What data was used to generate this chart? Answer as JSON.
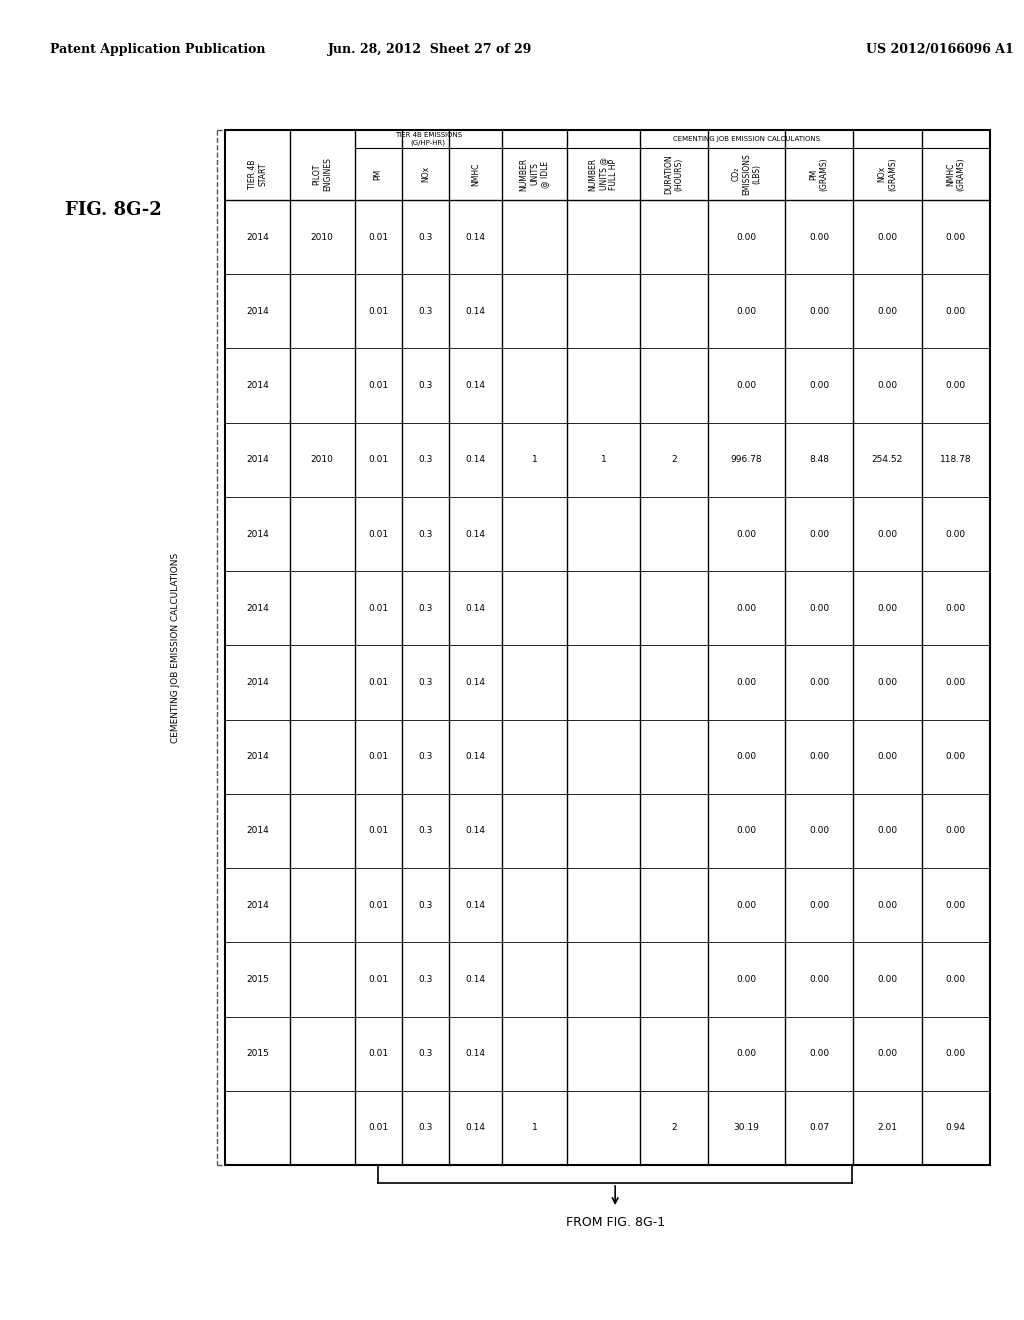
{
  "fig_label": "FIG. 8G-2",
  "patent_header_left": "Patent Application Publication",
  "patent_header_mid": "Jun. 28, 2012  Sheet 27 of 29",
  "patent_header_right": "US 2012/0166096 A1",
  "from_label": "FROM FIG. 8G-1",
  "background": "#ffffff",
  "text_color": "#000000",
  "col_headers": [
    "TIER 4B\nSTART",
    "PILOT\nENGINES",
    "PM",
    "NOx",
    "NMHC",
    "NUMBER\nUNITS\n@ IDLE",
    "NUMBER\nUNITS @\nFULL HP",
    "DURATION\n(HOURS)",
    "CO₂\nEMISSIONS\n(LBS)",
    "PM\n(GRAMS)",
    "NOx\n(GRAMS)",
    "NMHC\n(GRAMS)"
  ],
  "group_label_tier4b": "TIER 4B EMISSIONS\n(G/HP-HR)",
  "group_label_cem": "CEMENTING JOB EMISSION CALCULATIONS",
  "data_rows": [
    [
      "2014",
      "2010",
      "0.01",
      "0.3",
      "0.14",
      "",
      "",
      "",
      "0.00",
      "0.00",
      "0.00",
      "0.00"
    ],
    [
      "2014",
      "",
      "0.01",
      "0.3",
      "0.14",
      "",
      "",
      "",
      "0.00",
      "0.00",
      "0.00",
      "0.00"
    ],
    [
      "2014",
      "",
      "0.01",
      "0.3",
      "0.14",
      "",
      "",
      "",
      "0.00",
      "0.00",
      "0.00",
      "0.00"
    ],
    [
      "2014",
      "2010",
      "0.01",
      "0.3",
      "0.14",
      "1",
      "1",
      "2",
      "996.78",
      "8.48",
      "254.52",
      "118.78"
    ],
    [
      "2014",
      "",
      "0.01",
      "0.3",
      "0.14",
      "",
      "",
      "",
      "0.00",
      "0.00",
      "0.00",
      "0.00"
    ],
    [
      "2014",
      "",
      "0.01",
      "0.3",
      "0.14",
      "",
      "",
      "",
      "0.00",
      "0.00",
      "0.00",
      "0.00"
    ],
    [
      "2014",
      "",
      "0.01",
      "0.3",
      "0.14",
      "",
      "",
      "",
      "0.00",
      "0.00",
      "0.00",
      "0.00"
    ],
    [
      "2014",
      "",
      "0.01",
      "0.3",
      "0.14",
      "",
      "",
      "",
      "0.00",
      "0.00",
      "0.00",
      "0.00"
    ],
    [
      "2014",
      "",
      "0.01",
      "0.3",
      "0.14",
      "",
      "",
      "",
      "0.00",
      "0.00",
      "0.00",
      "0.00"
    ],
    [
      "2014",
      "",
      "0.01",
      "0.3",
      "0.14",
      "",
      "",
      "",
      "0.00",
      "0.00",
      "0.00",
      "0.00"
    ],
    [
      "2015",
      "",
      "0.01",
      "0.3",
      "0.14",
      "",
      "",
      "",
      "0.00",
      "0.00",
      "0.00",
      "0.00"
    ],
    [
      "2015",
      "",
      "0.01",
      "0.3",
      "0.14",
      "",
      "",
      "",
      "0.00",
      "0.00",
      "0.00",
      "0.00"
    ]
  ],
  "totals_row": [
    "",
    "",
    "0.01",
    "0.3",
    "0.14",
    "1",
    "",
    "2",
    "30.19",
    "0.07",
    "2.01",
    "0.94"
  ]
}
